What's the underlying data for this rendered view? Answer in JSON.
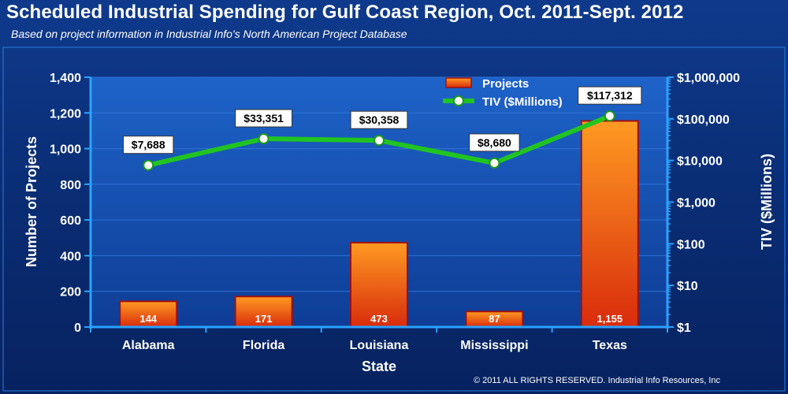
{
  "title": "Scheduled Industrial Spending for Gulf Coast Region, Oct. 2011-Sept. 2012",
  "subtitle": "Based on project information in Industrial Info's North American Project Database",
  "copyright": "© 2011 ALL RIGHTS RESERVED. Industrial Info Resources, Inc",
  "colors": {
    "background": "#0a2d74",
    "bar_top": "#ff9a22",
    "bar_bottom": "#d92c0c",
    "bar_border": "#a01010",
    "line": "#21c421",
    "axis": "#2aa3ff",
    "text": "#ffffff"
  },
  "chart_data": {
    "type": "bar",
    "categories": [
      "Alabama",
      "Florida",
      "Louisiana",
      "Mississippi",
      "Texas"
    ],
    "series": [
      {
        "name": "Projects",
        "type": "bar",
        "axis": "left",
        "values": [
          144,
          171,
          473,
          87,
          1155
        ],
        "data_labels": [
          "144",
          "171",
          "473",
          "87",
          "1,155"
        ]
      },
      {
        "name": "TIV ($Millions)",
        "type": "line",
        "axis": "right",
        "values": [
          7688,
          33351,
          30358,
          8680,
          117312
        ],
        "data_labels": [
          "$7,688",
          "$33,351",
          "$30,358",
          "$8,680",
          "$117,312"
        ]
      }
    ],
    "xlabel": "State",
    "ylabel": "Number of Projects",
    "ylabel_right": "TIV ($Millions)",
    "ylim": [
      0,
      1400
    ],
    "yticks": [
      0,
      200,
      400,
      600,
      800,
      1000,
      1200,
      1400
    ],
    "ytick_labels": [
      "0",
      "200",
      "400",
      "600",
      "800",
      "1,000",
      "1,200",
      "1,400"
    ],
    "ylim_right": [
      1,
      1000000
    ],
    "yscale_right": "log",
    "yticks_right": [
      1,
      10,
      100,
      1000,
      10000,
      100000,
      1000000
    ],
    "ytick_labels_right": [
      "$1",
      "$10",
      "$100",
      "$1,000",
      "$10,000",
      "$100,000",
      "$1,000,000"
    ],
    "grid": true,
    "legend": "top-center"
  }
}
